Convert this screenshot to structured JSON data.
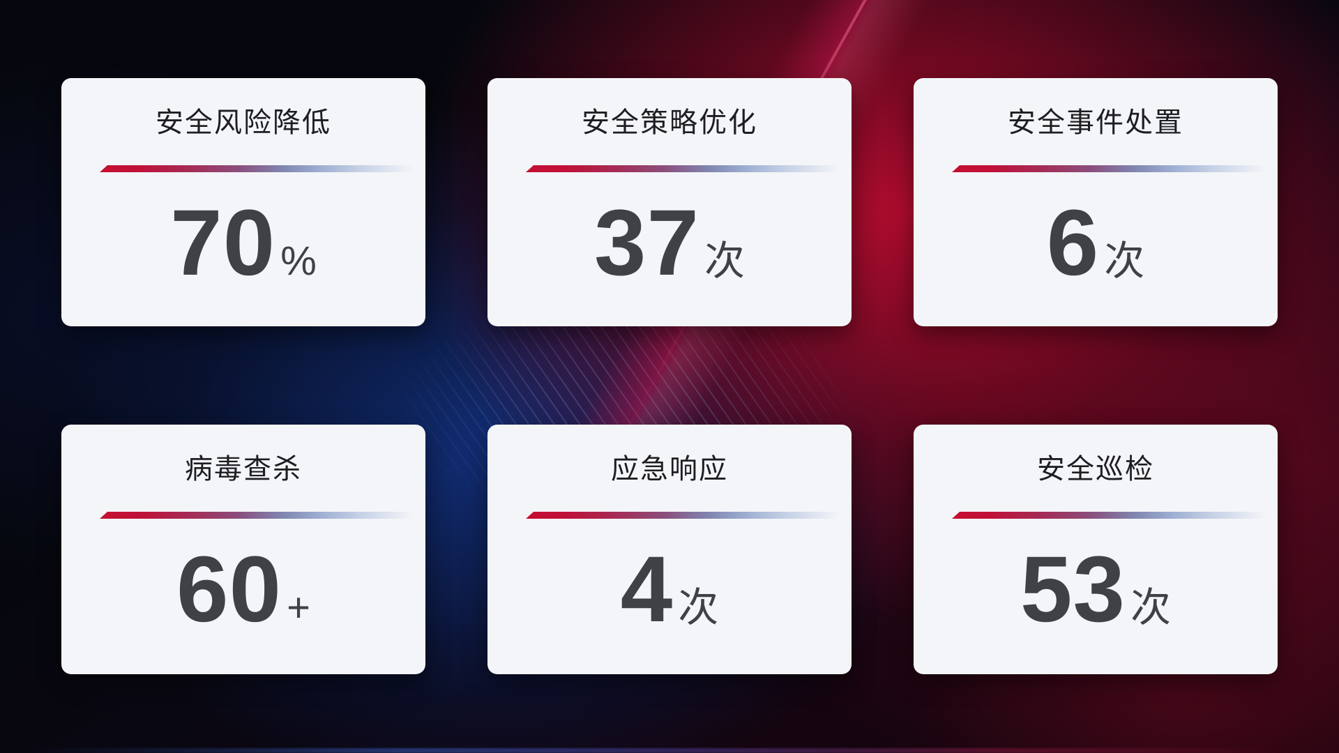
{
  "screen": {
    "description_label": "安全运营数据统计面板",
    "colors": {
      "accent_red": "#c50f31",
      "underline_gradient_end": "#c6d1e6",
      "card_background": "#f4f5f8",
      "title_color": "#1d1d22",
      "value_color": "#404047",
      "background_dark": "#05060c",
      "background_blue": "#12307c",
      "background_red": "#a50d2c"
    }
  },
  "cards": [
    {
      "id": "risk-reduction",
      "title": "安全风险降低",
      "value": "70",
      "unit": "%"
    },
    {
      "id": "policy-optimization",
      "title": "安全策略优化",
      "value": "37",
      "unit": "次"
    },
    {
      "id": "incident-handling",
      "title": "安全事件处置",
      "value": "6",
      "unit": "次"
    },
    {
      "id": "virus-scan",
      "title": "病毒查杀",
      "value": "60",
      "unit": "+"
    },
    {
      "id": "emergency-response",
      "title": "应急响应",
      "value": "4",
      "unit": "次"
    },
    {
      "id": "security-inspection",
      "title": "安全巡检",
      "value": "53",
      "unit": "次"
    }
  ]
}
